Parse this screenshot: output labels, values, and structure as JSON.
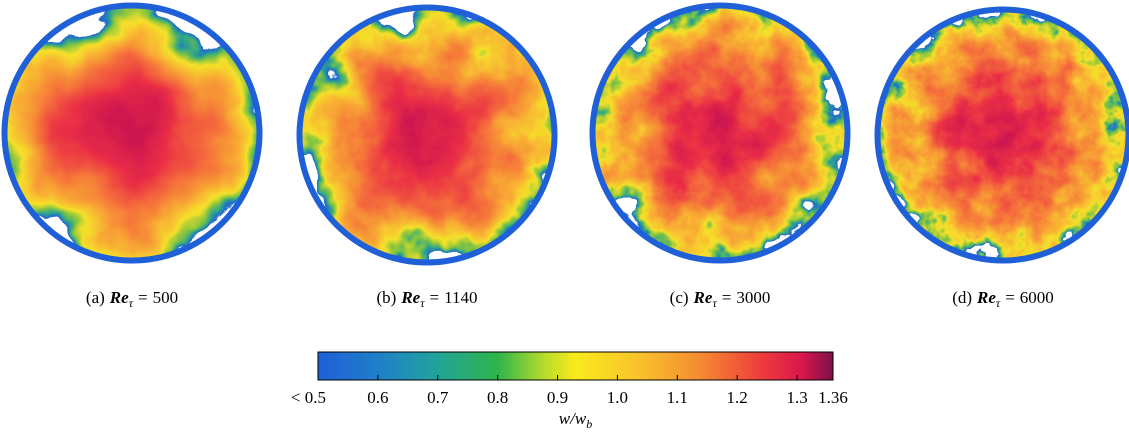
{
  "panels": [
    {
      "label": "(a)",
      "quantity": "Re",
      "subscript": "τ",
      "relation": "=",
      "value": 500
    },
    {
      "label": "(b)",
      "quantity": "Re",
      "subscript": "τ",
      "relation": "=",
      "value": 1140
    },
    {
      "label": "(c)",
      "quantity": "Re",
      "subscript": "τ",
      "relation": "=",
      "value": 3000
    },
    {
      "label": "(d)",
      "quantity": "Re",
      "subscript": "τ",
      "relation": "=",
      "value": 6000
    }
  ],
  "colorbar": {
    "label": "w/w",
    "label_subscript": "b",
    "lim": [
      0.5,
      1.36
    ],
    "ticks": [
      {
        "value": 0.5,
        "label": "< 0.5"
      },
      0.6,
      0.7,
      0.8,
      0.9,
      {
        "value": 1.0,
        "label": "1.0"
      },
      1.1,
      1.2,
      1.3,
      1.36
    ]
  }
}
